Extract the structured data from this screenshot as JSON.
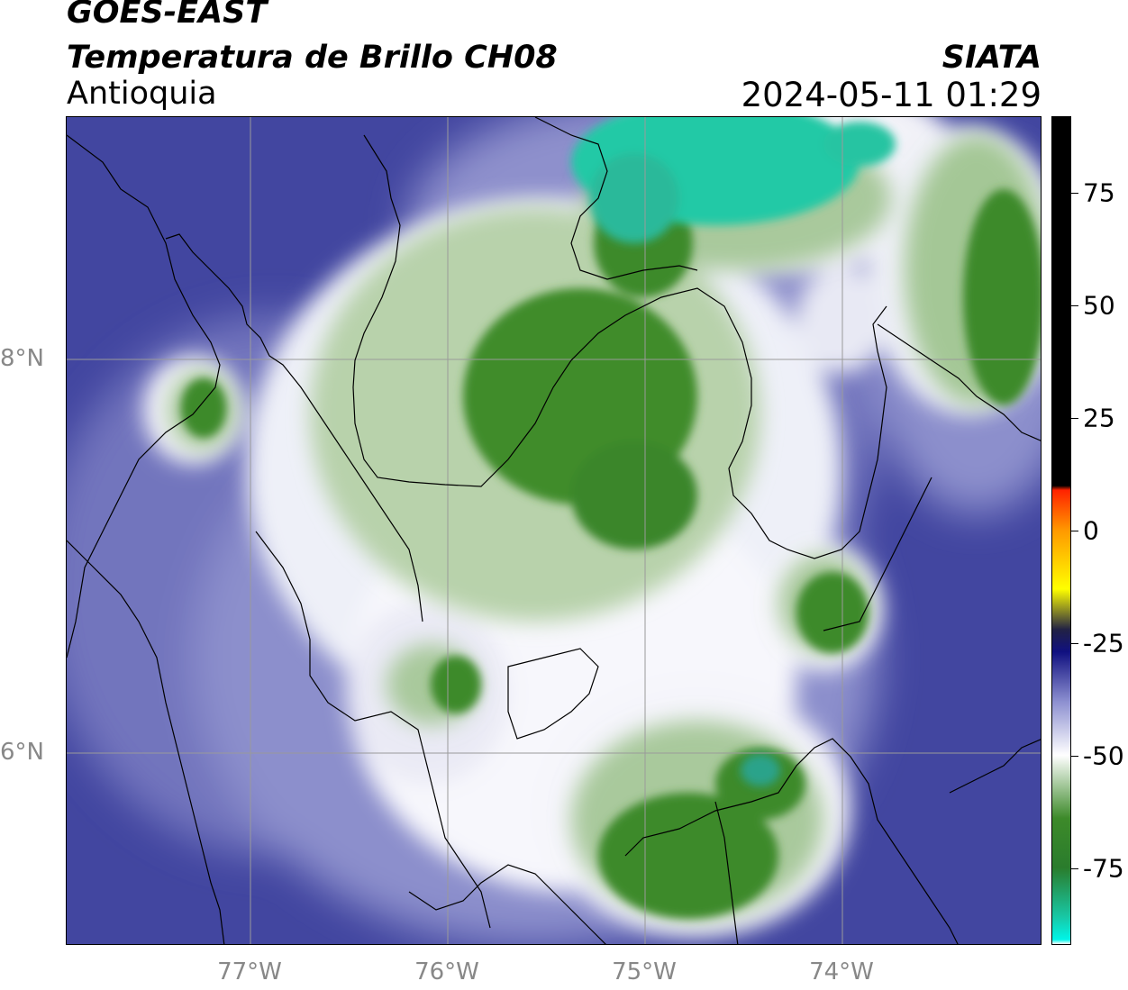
{
  "header": {
    "satellite": "GOES-EAST",
    "product": "Temperatura de Brillo CH08",
    "region": "Antioquia",
    "agency": "SIATA",
    "datetime": "2024-05-11 01:29"
  },
  "map": {
    "lat_labels": [
      "8°N",
      "6°N"
    ],
    "lon_labels": [
      "77°W",
      "76°W",
      "75°W",
      "74°W"
    ],
    "colors": {
      "cold_cloud_green": "#3d8a2a",
      "teal_top": "#22c9a6",
      "white_band": "#ffffff",
      "mid_purple": "#6b6fb8",
      "deep_navy_blue": "#3a3f92",
      "gridline": "#9a9a9a",
      "border": "#000000"
    }
  },
  "colorbar": {
    "labels": [
      "75",
      "50",
      "25",
      "0",
      "-25",
      "-50",
      "-75"
    ],
    "stops": [
      {
        "value": 92,
        "color": "#000000"
      },
      {
        "value": 10,
        "color": "#000000"
      },
      {
        "value": 9,
        "color": "#ff2200"
      },
      {
        "value": 0,
        "color": "#ff9900"
      },
      {
        "value": -13,
        "color": "#ffff00"
      },
      {
        "value": -22,
        "color": "#222244"
      },
      {
        "value": -27,
        "color": "#101080"
      },
      {
        "value": -38,
        "color": "#8c8fd0"
      },
      {
        "value": -50,
        "color": "#ffffff"
      },
      {
        "value": -64,
        "color": "#3d8a2a"
      },
      {
        "value": -75,
        "color": "#2a7c2c"
      },
      {
        "value": -86,
        "color": "#18c8a6"
      },
      {
        "value": -91,
        "color": "#00f5e8"
      },
      {
        "value": -92,
        "color": "#ffffff"
      }
    ]
  }
}
